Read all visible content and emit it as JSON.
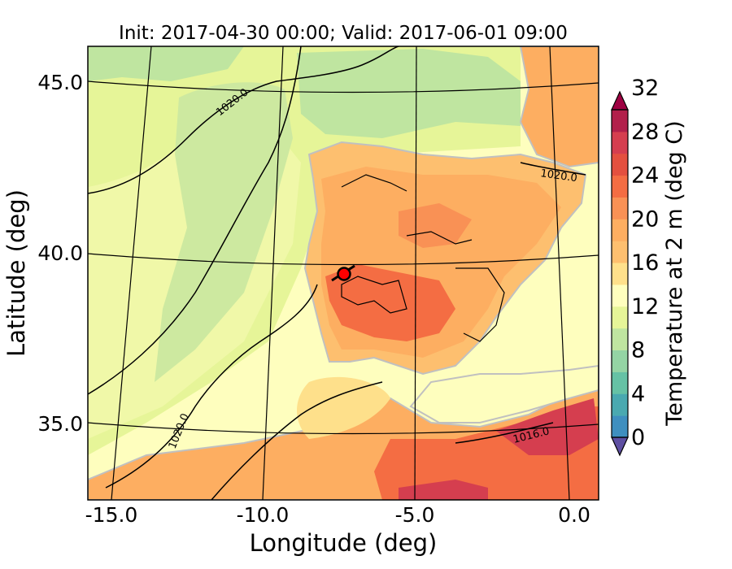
{
  "title": "Init: 2017-04-30 00:00; Valid: 2017-06-01 09:00",
  "map": {
    "xlabel": "Longitude (deg)",
    "ylabel": "Latitude (deg)",
    "x_ticks": [
      "-15.0",
      "-10.0",
      "-5.0",
      "0.0"
    ],
    "y_ticks": [
      "45.0",
      "40.0",
      "35.0"
    ],
    "contour_labels": [
      "1020.0",
      "1020.0",
      "1020.0",
      "1016.0"
    ],
    "marker": "red circle marker with black outline"
  },
  "colorbar": {
    "label": "Temperature at 2 m (deg C)",
    "ticks": [
      "0",
      "4",
      "8",
      "12",
      "16",
      "20",
      "24",
      "28",
      "32"
    ],
    "colors": [
      "#5e4fa2",
      "#3f8fbf",
      "#4aa9b0",
      "#66c2a5",
      "#94d4a4",
      "#bfe5a0",
      "#e6f598",
      "#fefebe",
      "#fee08b",
      "#fdbf6f",
      "#fdae61",
      "#f99155",
      "#f46d43",
      "#e4503f",
      "#d53e4f",
      "#b2204b",
      "#9e0142"
    ]
  },
  "colors": {
    "sea_cool": "#e8f0a8",
    "sea_green": "#bfe39f",
    "sea_warm": "#fefebe",
    "land_warm": "#fdae61",
    "land_hot": "#f46d43",
    "marker": "#ff0000"
  }
}
